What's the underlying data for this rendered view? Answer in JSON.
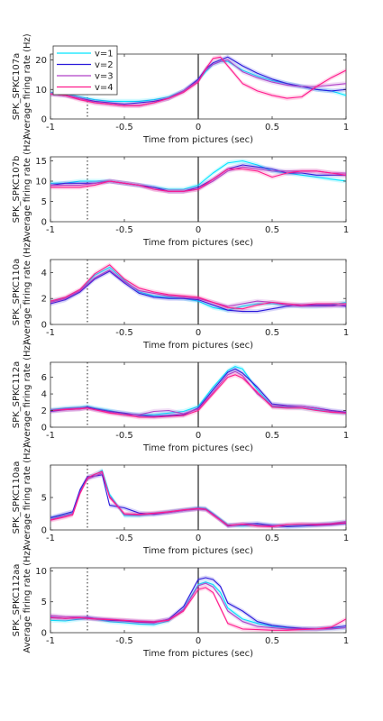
{
  "legend": {
    "placement": "top-left",
    "entries": [
      {
        "label": "v=1",
        "color": "#00e5ff"
      },
      {
        "label": "v=2",
        "color": "#2a1adb"
      },
      {
        "label": "v=3",
        "color": "#b040c8"
      },
      {
        "label": "v=4",
        "color": "#ff1a8c"
      }
    ]
  },
  "chart_data": [
    {
      "type": "line",
      "ylabel": "SPK_SPKC107a\nAverage firing rate (Hz)",
      "xlabel": "Time from pictures (sec)",
      "xlim": [
        -1,
        1
      ],
      "ylim": [
        0,
        22
      ],
      "xticks": [
        -1,
        -0.5,
        0,
        0.5,
        1
      ],
      "xticklabels": [
        "-1",
        "-0.5",
        "0",
        "0.5",
        "1"
      ],
      "yticks": [
        0,
        10,
        20
      ],
      "yticklabels": [
        "0",
        "10",
        "20"
      ],
      "grid": false,
      "x": [
        -1,
        -0.9,
        -0.8,
        -0.7,
        -0.6,
        -0.5,
        -0.4,
        -0.3,
        -0.2,
        -0.1,
        0,
        0.05,
        0.1,
        0.15,
        0.2,
        0.3,
        0.4,
        0.5,
        0.6,
        0.7,
        0.8,
        0.9,
        1
      ],
      "series": [
        {
          "name": "v=1",
          "values": [
            9,
            8.5,
            7.5,
            6.5,
            6,
            6,
            6,
            6.5,
            7.5,
            9.5,
            13,
            16,
            18.5,
            19.5,
            19.5,
            16.5,
            14.5,
            13,
            12,
            11,
            10,
            9.5,
            8
          ]
        },
        {
          "name": "v=2",
          "values": [
            8.5,
            8,
            7,
            6,
            5.5,
            5,
            5.5,
            6,
            7,
            9.5,
            13.5,
            17,
            19,
            20,
            21,
            18,
            15.5,
            13.5,
            12,
            11,
            10,
            9.5,
            10
          ]
        },
        {
          "name": "v=3",
          "values": [
            8.5,
            8,
            7,
            5.5,
            5,
            4.5,
            4.5,
            5.5,
            7,
            9.5,
            13,
            16.5,
            18.5,
            19.5,
            20,
            16,
            14,
            12.5,
            11.5,
            11,
            11,
            11.5,
            12
          ]
        },
        {
          "name": "v=4",
          "values": [
            8.5,
            8,
            6.5,
            5.5,
            5,
            4.5,
            4.5,
            5.5,
            7,
            9,
            12.5,
            17,
            20.5,
            21,
            18,
            12,
            9.5,
            8,
            7,
            7.5,
            11,
            14,
            16.5
          ]
        }
      ],
      "vlines": [
        {
          "x": 0,
          "style": "solid"
        },
        {
          "x": -0.75,
          "style": "dotted"
        }
      ]
    },
    {
      "type": "line",
      "ylabel": "SPK_SPKC107b\nAverage firing rate (Hz)",
      "xlabel": "Time from pictures (sec)",
      "xlim": [
        -1,
        1
      ],
      "ylim": [
        0,
        16
      ],
      "xticks": [
        -1,
        -0.5,
        0,
        0.5,
        1
      ],
      "xticklabels": [
        "-1",
        "-0.5",
        "0",
        "0.5",
        "1"
      ],
      "yticks": [
        0,
        5,
        10,
        15
      ],
      "yticklabels": [
        "0",
        "5",
        "10",
        "15"
      ],
      "grid": false,
      "x": [
        -1,
        -0.9,
        -0.8,
        -0.7,
        -0.6,
        -0.5,
        -0.4,
        -0.3,
        -0.2,
        -0.1,
        0,
        0.1,
        0.2,
        0.3,
        0.4,
        0.5,
        0.6,
        0.7,
        0.8,
        0.9,
        1
      ],
      "series": [
        {
          "name": "v=1",
          "values": [
            9.5,
            9.5,
            10,
            10,
            10,
            9.5,
            9,
            8.5,
            8,
            8,
            9,
            12,
            14.5,
            15,
            14,
            12.5,
            12,
            11.5,
            11,
            10.5,
            10
          ]
        },
        {
          "name": "v=2",
          "values": [
            9,
            9.5,
            9.5,
            9.5,
            10,
            9.5,
            9,
            8.5,
            7.5,
            7.5,
            8.5,
            10.5,
            13,
            14,
            13.5,
            13,
            12,
            12,
            11.5,
            11.5,
            11.5
          ]
        },
        {
          "name": "v=3",
          "values": [
            9,
            9,
            9,
            9.5,
            10,
            9.5,
            9,
            8,
            7.5,
            7.5,
            8,
            10,
            12.5,
            13.5,
            13,
            12.5,
            12.5,
            12.5,
            12.5,
            12,
            12
          ]
        },
        {
          "name": "v=4",
          "values": [
            8.5,
            8.5,
            8.5,
            9,
            10,
            9.5,
            9,
            8,
            7.5,
            7.5,
            8,
            10.5,
            13,
            13,
            12.5,
            11,
            12,
            12.5,
            12.5,
            12,
            11.5
          ]
        }
      ],
      "vlines": [
        {
          "x": 0,
          "style": "solid"
        },
        {
          "x": -0.75,
          "style": "dotted"
        }
      ]
    },
    {
      "type": "line",
      "ylabel": "SPK_SPKC110a\nAverage firing rate (Hz)",
      "xlabel": "Time from pictures (sec)",
      "xlim": [
        -1,
        1
      ],
      "ylim": [
        0,
        5
      ],
      "xticks": [
        -1,
        -0.5,
        0,
        0.5,
        1
      ],
      "xticklabels": [
        "-1",
        "-0.5",
        "0",
        "0.5",
        "1"
      ],
      "yticks": [
        0,
        2,
        4
      ],
      "yticklabels": [
        "0",
        "2",
        "4"
      ],
      "grid": false,
      "x": [
        -1,
        -0.9,
        -0.8,
        -0.75,
        -0.7,
        -0.6,
        -0.5,
        -0.4,
        -0.3,
        -0.2,
        -0.1,
        0,
        0.1,
        0.2,
        0.3,
        0.4,
        0.5,
        0.6,
        0.7,
        0.8,
        0.9,
        1
      ],
      "series": [
        {
          "name": "v=1",
          "values": [
            1.8,
            2,
            2.6,
            3.2,
            3.8,
            4.4,
            3.4,
            2.5,
            2.2,
            2.1,
            2,
            1.8,
            1.3,
            1.1,
            1.4,
            1.6,
            1.6,
            1.5,
            1.4,
            1.4,
            1.5,
            1.7
          ]
        },
        {
          "name": "v=2",
          "values": [
            1.6,
            1.9,
            2.5,
            3,
            3.5,
            4.1,
            3.2,
            2.4,
            2.1,
            2,
            2,
            1.9,
            1.5,
            1.1,
            1,
            1,
            1.2,
            1.4,
            1.5,
            1.5,
            1.5,
            1.4
          ]
        },
        {
          "name": "v=3",
          "values": [
            1.7,
            2,
            2.6,
            3.1,
            3.6,
            4.2,
            3.3,
            2.6,
            2.4,
            2.2,
            2.1,
            2,
            1.7,
            1.4,
            1.6,
            1.8,
            1.7,
            1.5,
            1.4,
            1.4,
            1.4,
            1.5
          ]
        },
        {
          "name": "v=4",
          "values": [
            1.8,
            2.1,
            2.7,
            3.3,
            3.9,
            4.6,
            3.5,
            2.8,
            2.5,
            2.3,
            2.2,
            2.1,
            1.7,
            1.3,
            1.2,
            1.5,
            1.7,
            1.6,
            1.5,
            1.6,
            1.6,
            1.6
          ]
        }
      ],
      "vlines": [
        {
          "x": 0,
          "style": "solid"
        },
        {
          "x": -0.75,
          "style": "dotted"
        }
      ]
    },
    {
      "type": "line",
      "ylabel": "SPK_SPKC112a\nAverage firing rate (Hz)",
      "xlabel": "Time from pictures (sec)",
      "xlim": [
        -1,
        1
      ],
      "ylim": [
        0,
        7.8
      ],
      "xticks": [
        -1,
        -0.5,
        0,
        0.5,
        1
      ],
      "xticklabels": [
        "-1",
        "-0.5",
        "0",
        "0.5",
        "1"
      ],
      "yticks": [
        0,
        2,
        4,
        6
      ],
      "yticklabels": [
        "0",
        "2",
        "4",
        "6"
      ],
      "grid": false,
      "x": [
        -1,
        -0.9,
        -0.8,
        -0.75,
        -0.7,
        -0.6,
        -0.5,
        -0.4,
        -0.3,
        -0.2,
        -0.1,
        0,
        0.1,
        0.2,
        0.25,
        0.3,
        0.4,
        0.5,
        0.6,
        0.7,
        0.8,
        0.9,
        1
      ],
      "series": [
        {
          "name": "v=1",
          "values": [
            2.1,
            2.3,
            2.4,
            2.5,
            2.3,
            2,
            1.6,
            1.5,
            1.5,
            1.7,
            1.9,
            2.5,
            4.8,
            6.8,
            7.3,
            7,
            4.5,
            2.5,
            2.4,
            2.3,
            2.1,
            1.8,
            1.7
          ]
        },
        {
          "name": "v=2",
          "values": [
            1.9,
            2.1,
            2.2,
            2.4,
            2.2,
            1.9,
            1.7,
            1.4,
            1.3,
            1.4,
            1.5,
            2.3,
            4.5,
            6.6,
            7,
            6.5,
            4.8,
            2.8,
            2.6,
            2.5,
            2.3,
            2,
            1.8
          ]
        },
        {
          "name": "v=3",
          "values": [
            2,
            2.2,
            2.3,
            2.3,
            2.1,
            1.8,
            1.5,
            1.5,
            1.9,
            2,
            1.6,
            2.2,
            4.2,
            6.3,
            6.7,
            6.2,
            4,
            2.6,
            2.5,
            2.5,
            2.3,
            1.9,
            1.7
          ]
        },
        {
          "name": "v=4",
          "values": [
            2,
            2.1,
            2.2,
            2.3,
            2.1,
            1.7,
            1.5,
            1.2,
            1.2,
            1.3,
            1.4,
            2,
            4,
            6,
            6.3,
            5.9,
            4.2,
            2.4,
            2.3,
            2.3,
            2,
            1.8,
            1.7
          ]
        }
      ],
      "vlines": [
        {
          "x": 0,
          "style": "solid"
        },
        {
          "x": -0.75,
          "style": "dotted"
        }
      ]
    },
    {
      "type": "line",
      "ylabel": "SPK_SPKC110aa\nAverage firing rate (Hz)",
      "xlabel": "Time from pictures (sec)",
      "xlim": [
        -1,
        1
      ],
      "ylim": [
        0,
        10
      ],
      "xticks": [
        -1,
        -0.5,
        0,
        0.5,
        1
      ],
      "xticklabels": [
        "-1",
        "-0.5",
        "0",
        "0.5",
        "1"
      ],
      "yticks": [
        0,
        5
      ],
      "yticklabels": [
        "0",
        "5"
      ],
      "grid": false,
      "x": [
        -1,
        -0.9,
        -0.85,
        -0.8,
        -0.75,
        -0.7,
        -0.65,
        -0.6,
        -0.5,
        -0.4,
        -0.3,
        -0.2,
        -0.1,
        0,
        0.05,
        0.1,
        0.2,
        0.3,
        0.4,
        0.5,
        0.6,
        0.7,
        0.8,
        0.9,
        1
      ],
      "series": [
        {
          "name": "v=1",
          "values": [
            1.8,
            2.3,
            2.6,
            6,
            8,
            8.5,
            9.2,
            5.5,
            2.2,
            2.2,
            2.5,
            2.8,
            3.1,
            3.4,
            3.3,
            2.5,
            0.8,
            0.6,
            0.8,
            0.7,
            0.6,
            0.7,
            0.8,
            1,
            1.2
          ]
        },
        {
          "name": "v=2",
          "values": [
            1.9,
            2.5,
            2.8,
            6.2,
            8.2,
            8.3,
            8.5,
            3.8,
            3.4,
            2.6,
            2.4,
            2.7,
            3,
            3.3,
            3.2,
            2.4,
            0.6,
            0.9,
            1,
            0.7,
            0.5,
            0.6,
            0.7,
            0.8,
            1
          ]
        },
        {
          "name": "v=3",
          "values": [
            1.6,
            2.2,
            2.5,
            5.8,
            7.8,
            8.3,
            8.8,
            5.2,
            2.4,
            2.3,
            2.5,
            2.7,
            3,
            3.2,
            3.1,
            2.4,
            0.7,
            0.8,
            0.7,
            0.6,
            0.8,
            0.9,
            0.9,
            1,
            1.3
          ]
        },
        {
          "name": "v=4",
          "values": [
            1.5,
            2,
            2.3,
            5.6,
            8,
            8.6,
            9,
            5,
            2.5,
            2.4,
            2.6,
            2.8,
            3.1,
            3.3,
            3.2,
            2.3,
            0.7,
            0.9,
            0.6,
            0.5,
            0.8,
            0.9,
            0.8,
            0.9,
            1.1
          ]
        }
      ],
      "vlines": [
        {
          "x": 0,
          "style": "solid"
        },
        {
          "x": -0.75,
          "style": "dotted"
        }
      ]
    },
    {
      "type": "line",
      "ylabel": "SPK_SPKC112aa\nAverage firing rate (Hz)",
      "xlabel": "Time from pictures (sec)",
      "xlim": [
        -1,
        1
      ],
      "ylim": [
        0,
        10.5
      ],
      "xticks": [
        -1,
        -0.5,
        0,
        0.5,
        1
      ],
      "xticklabels": [
        "-1",
        "-0.5",
        "0",
        "0.5",
        "1"
      ],
      "yticks": [
        0,
        5,
        10
      ],
      "yticklabels": [
        "0",
        "5",
        "10"
      ],
      "grid": false,
      "x": [
        -1,
        -0.9,
        -0.8,
        -0.75,
        -0.7,
        -0.6,
        -0.5,
        -0.4,
        -0.3,
        -0.2,
        -0.1,
        0,
        0.05,
        0.1,
        0.15,
        0.2,
        0.3,
        0.4,
        0.5,
        0.6,
        0.7,
        0.8,
        0.9,
        1
      ],
      "series": [
        {
          "name": "v=1",
          "values": [
            2,
            1.9,
            2.2,
            2.3,
            2.2,
            1.8,
            1.6,
            1.4,
            1.3,
            1.9,
            3.8,
            7.8,
            8.2,
            7.8,
            6.5,
            4,
            2.2,
            1.5,
            1,
            0.8,
            0.6,
            0.6,
            0.7,
            0.8
          ]
        },
        {
          "name": "v=2",
          "values": [
            2.5,
            2.3,
            2.4,
            2.5,
            2.3,
            2,
            1.9,
            1.7,
            1.6,
            2.2,
            4.2,
            8.6,
            8.9,
            8.6,
            7.5,
            4.8,
            3.5,
            1.8,
            1.2,
            0.9,
            0.7,
            0.6,
            0.8,
            1.1
          ]
        },
        {
          "name": "v=3",
          "values": [
            2.8,
            2.6,
            2.5,
            2.4,
            2.3,
            2.2,
            2,
            1.9,
            1.8,
            2.1,
            3.7,
            7.6,
            8,
            7.4,
            5.8,
            3.5,
            1.8,
            1,
            0.8,
            0.6,
            0.6,
            0.6,
            0.6,
            0.8
          ]
        },
        {
          "name": "v=4",
          "values": [
            2.4,
            2.3,
            2.4,
            2.3,
            2.2,
            2.1,
            2,
            1.8,
            1.7,
            2,
            3.5,
            7,
            7.3,
            6.5,
            4,
            1.5,
            0.6,
            0.5,
            0.4,
            0.4,
            0.5,
            0.6,
            0.9,
            2.2
          ]
        }
      ],
      "vlines": [
        {
          "x": 0,
          "style": "solid"
        },
        {
          "x": -0.75,
          "style": "dotted"
        }
      ]
    }
  ]
}
